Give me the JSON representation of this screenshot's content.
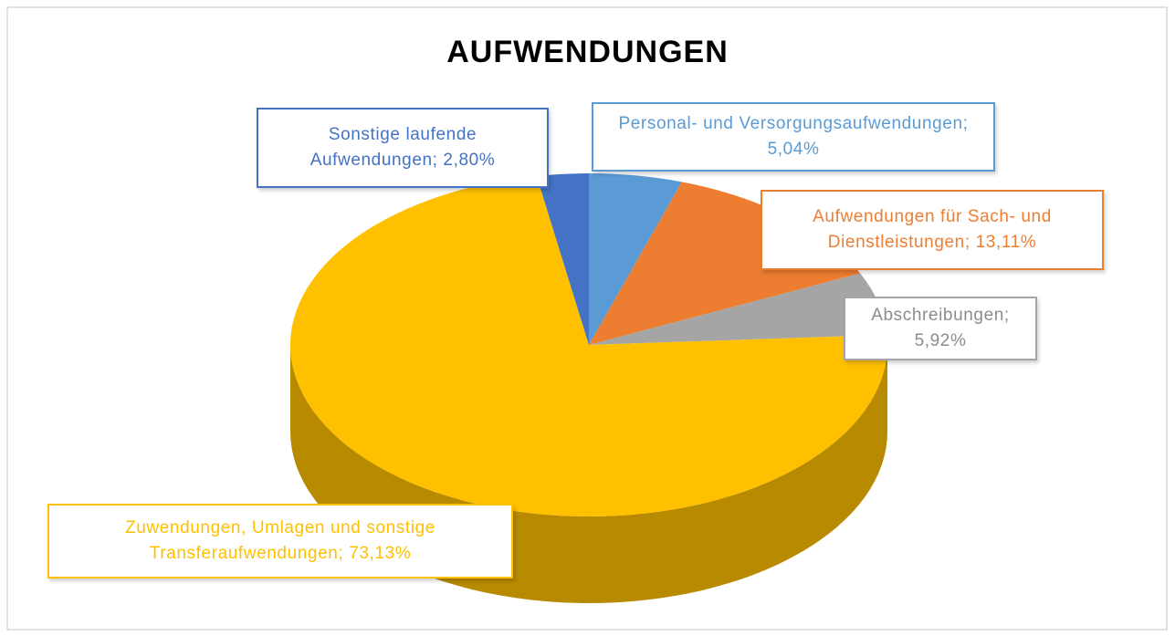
{
  "chart_data": {
    "type": "pie",
    "title": "AUFWENDUNGEN",
    "values": [
      5.04,
      13.11,
      5.92,
      73.13,
      2.8
    ],
    "value_labels": [
      "Personal- und Versorgungsaufwendungen; 5,04%",
      "Aufwendungen für Sach- und Dienstleistungen; 13,11%",
      "Abschreibungen; 5,92%",
      "Zuwendungen, Umlagen und sonstige Transferaufwendungen; 73,13%",
      "Sonstige laufende Aufwendungen; 2,80%"
    ],
    "colors": [
      "#5b9bd5",
      "#ed7d31",
      "#a5a5a5",
      "#ffc000",
      "#4472c4"
    ]
  }
}
